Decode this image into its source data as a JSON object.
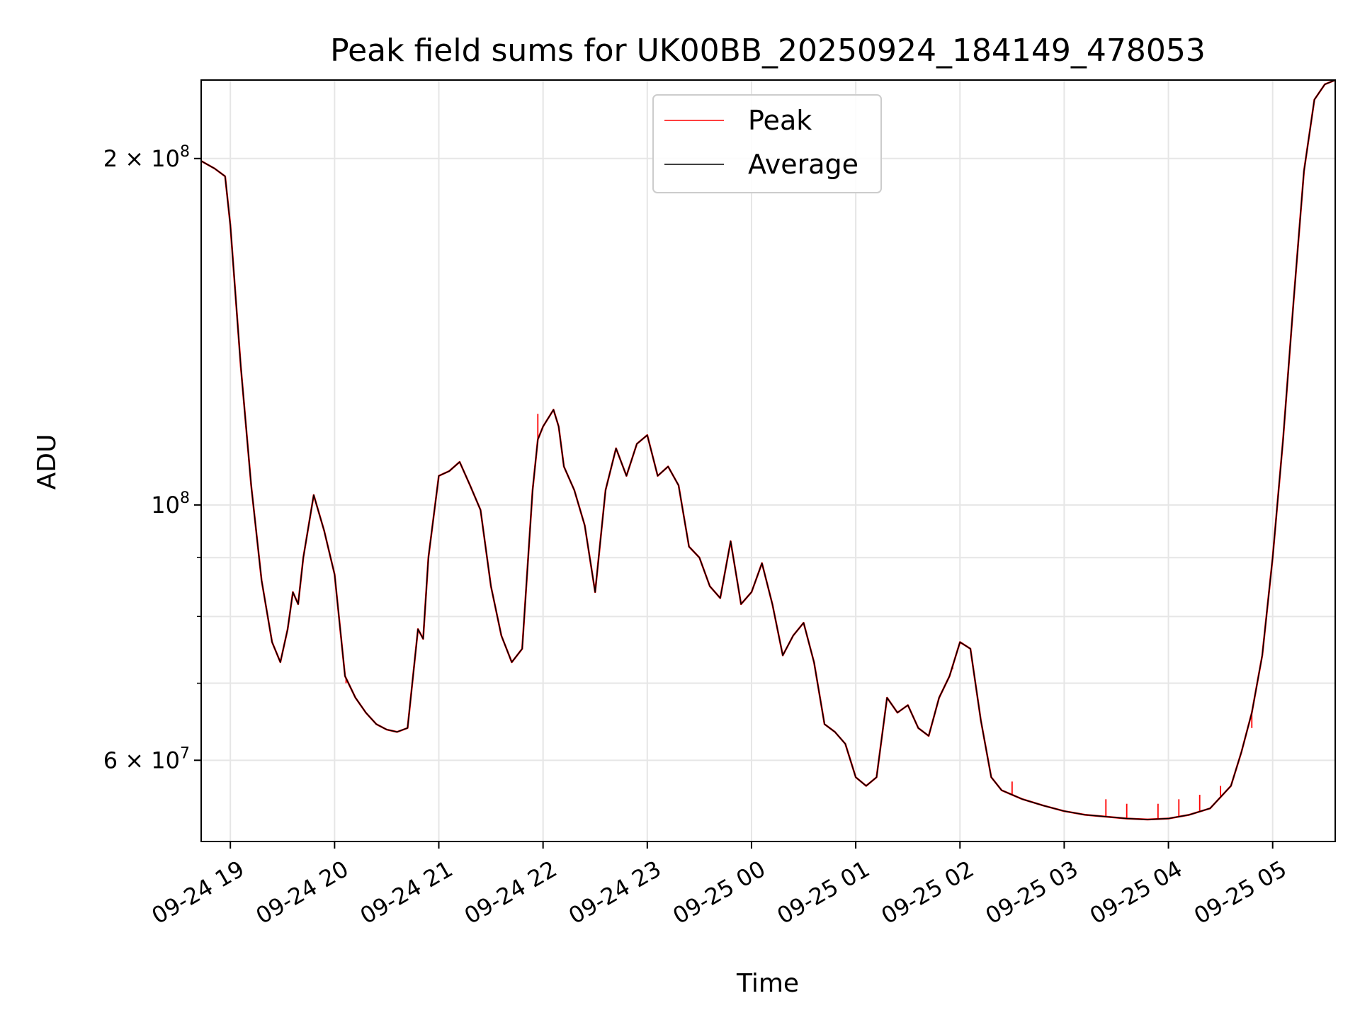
{
  "chart_data": {
    "type": "line",
    "title": "Peak field sums for UK00BB_20250924_184149_478053",
    "xlabel": "Time",
    "ylabel": "ADU",
    "yscale": "log",
    "ylim": [
      51000000,
      234000000
    ],
    "xlim_hours": [
      18.72,
      5.6
    ],
    "grid": true,
    "legend_position": "top-center",
    "x_ticks": [
      {
        "label": "09-24 19",
        "hour": 19
      },
      {
        "label": "09-24 20",
        "hour": 20
      },
      {
        "label": "09-24 21",
        "hour": 21
      },
      {
        "label": "09-24 22",
        "hour": 22
      },
      {
        "label": "09-24 23",
        "hour": 23
      },
      {
        "label": "09-25 00",
        "hour": 24
      },
      {
        "label": "09-25 01",
        "hour": 25
      },
      {
        "label": "09-25 02",
        "hour": 26
      },
      {
        "label": "09-25 03",
        "hour": 27
      },
      {
        "label": "09-25 04",
        "hour": 28
      },
      {
        "label": "09-25 05",
        "hour": 29
      }
    ],
    "y_major_ticks": [
      {
        "mant": "6",
        "exp": "7",
        "value": 60000000
      },
      {
        "mant": "",
        "exp": "8",
        "value": 100000000
      },
      {
        "mant": "2",
        "exp": "8",
        "value": 200000000
      }
    ],
    "y_minor_ticks": [
      70000000,
      80000000,
      90000000
    ],
    "series": [
      {
        "name": "Peak",
        "color": "#ff0000"
      },
      {
        "name": "Average",
        "color": "#000000"
      }
    ],
    "x_hours": [
      18.72,
      18.85,
      18.95,
      19.0,
      19.1,
      19.2,
      19.3,
      19.4,
      19.48,
      19.55,
      19.6,
      19.65,
      19.7,
      19.8,
      19.9,
      20.0,
      20.1,
      20.2,
      20.3,
      20.4,
      20.5,
      20.6,
      20.7,
      20.8,
      20.85,
      20.9,
      21.0,
      21.1,
      21.2,
      21.3,
      21.4,
      21.5,
      21.6,
      21.7,
      21.8,
      21.9,
      21.95,
      22.0,
      22.1,
      22.15,
      22.2,
      22.3,
      22.4,
      22.5,
      22.6,
      22.7,
      22.8,
      22.9,
      23.0,
      23.1,
      23.2,
      23.3,
      23.4,
      23.5,
      23.6,
      23.7,
      23.8,
      23.9,
      24.0,
      24.1,
      24.2,
      24.3,
      24.4,
      24.5,
      24.6,
      24.7,
      24.8,
      24.9,
      25.0,
      25.1,
      25.2,
      25.3,
      25.4,
      25.5,
      25.6,
      25.7,
      25.8,
      25.9,
      26.0,
      26.1,
      26.2,
      26.3,
      26.4,
      26.5,
      26.6,
      26.8,
      27.0,
      27.2,
      27.4,
      27.6,
      27.8,
      28.0,
      28.2,
      28.4,
      28.6,
      28.7,
      28.8,
      28.9,
      29.0,
      29.1,
      29.2,
      29.3,
      29.4,
      29.5,
      29.6
    ],
    "average": [
      199000000,
      196000000,
      193000000,
      175000000,
      132000000,
      104000000,
      86000000,
      76000000,
      73000000,
      78000000,
      84000000,
      82000000,
      90000000,
      102000000,
      95000000,
      87000000,
      71000000,
      68000000,
      66000000,
      64500000,
      63800000,
      63500000,
      64000000,
      78000000,
      76500000,
      90000000,
      106000000,
      107000000,
      109000000,
      104000000,
      99000000,
      85000000,
      77000000,
      73000000,
      75000000,
      103000000,
      114000000,
      117000000,
      121000000,
      117000000,
      108000000,
      103000000,
      96000000,
      84000000,
      103000000,
      112000000,
      106000000,
      113000000,
      115000000,
      106000000,
      108000000,
      104000000,
      92000000,
      90000000,
      85000000,
      83000000,
      93000000,
      82000000,
      84000000,
      89000000,
      82000000,
      74000000,
      77000000,
      79000000,
      73000000,
      64500000,
      63500000,
      62000000,
      58000000,
      57000000,
      58000000,
      68000000,
      66000000,
      67000000,
      64000000,
      63000000,
      68000000,
      71000000,
      76000000,
      75000000,
      65000000,
      58000000,
      56500000,
      56000000,
      55500000,
      54800000,
      54200000,
      53800000,
      53600000,
      53400000,
      53300000,
      53400000,
      53800000,
      54500000,
      57000000,
      61000000,
      66000000,
      74000000,
      90000000,
      114000000,
      150000000,
      195000000,
      225000000,
      232000000,
      234000000
    ],
    "peak_spikes": [
      {
        "hour": 21.95,
        "value": 120000000
      },
      {
        "hour": 20.11,
        "value": 70000000
      },
      {
        "hour": 25.93,
        "value": 72000000
      },
      {
        "hour": 26.5,
        "value": 57500000
      },
      {
        "hour": 27.4,
        "value": 55500000
      },
      {
        "hour": 27.6,
        "value": 55000000
      },
      {
        "hour": 27.9,
        "value": 55000000
      },
      {
        "hour": 28.1,
        "value": 55500000
      },
      {
        "hour": 28.3,
        "value": 56000000
      },
      {
        "hour": 28.5,
        "value": 57000000
      },
      {
        "hour": 28.8,
        "value": 64000000
      }
    ]
  }
}
